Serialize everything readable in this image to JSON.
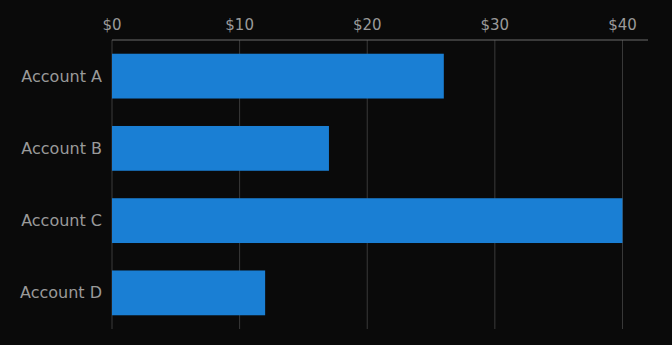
{
  "chart_data": {
    "type": "bar",
    "orientation": "horizontal",
    "categories": [
      "Account D",
      "Account C",
      "Account B",
      "Account A"
    ],
    "values": [
      12,
      40,
      17,
      26
    ],
    "color": "#1a7fd4",
    "xlim": [
      0,
      42
    ],
    "xticks": [
      {
        "value": 0,
        "label": "$0"
      },
      {
        "value": 10,
        "label": "$10"
      },
      {
        "value": 20,
        "label": "$20"
      },
      {
        "value": 30,
        "label": "$30"
      },
      {
        "value": 40,
        "label": "$40"
      }
    ],
    "grid": true
  }
}
